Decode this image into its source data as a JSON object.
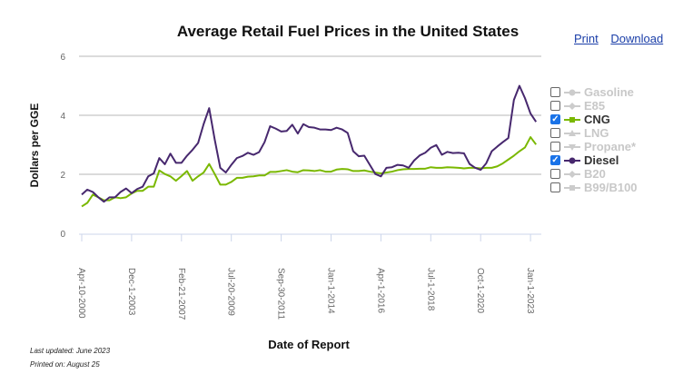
{
  "links": {
    "print": "Print",
    "download": "Download"
  },
  "footer": {
    "updated": "Last updated: June 2023",
    "printed": "Printed on: August 25"
  },
  "legend": [
    {
      "label": "Gasoline",
      "checked": false,
      "color": "#cccccc",
      "marker": "circle"
    },
    {
      "label": "E85",
      "checked": false,
      "color": "#cccccc",
      "marker": "diamond"
    },
    {
      "label": "CNG",
      "checked": true,
      "color": "#7ab800",
      "marker": "square"
    },
    {
      "label": "LNG",
      "checked": false,
      "color": "#cccccc",
      "marker": "triangle"
    },
    {
      "label": "Propane*",
      "checked": false,
      "color": "#cccccc",
      "marker": "triangle-down"
    },
    {
      "label": "Diesel",
      "checked": true,
      "color": "#47286e",
      "marker": "circle"
    },
    {
      "label": "B20",
      "checked": false,
      "color": "#cccccc",
      "marker": "diamond"
    },
    {
      "label": "B99/B100",
      "checked": false,
      "color": "#cccccc",
      "marker": "square"
    }
  ],
  "chart_data": {
    "type": "line",
    "title": "Average Retail Fuel Prices in the United States",
    "xlabel": "Date of Report",
    "ylabel": "Dollars per GGE",
    "ylim": [
      0,
      6
    ],
    "yticks": [
      0,
      2,
      4,
      6
    ],
    "grid": true,
    "legend_placement": "right",
    "x_ticks": [
      {
        "index": 0,
        "label": "Apr-10-2000"
      },
      {
        "index": 9,
        "label": "Dec-1-2003"
      },
      {
        "index": 18,
        "label": "Feb-21-2007"
      },
      {
        "index": 27,
        "label": "Jul-20-2009"
      },
      {
        "index": 36,
        "label": "Sep-30-2011"
      },
      {
        "index": 45,
        "label": "Jan-1-2014"
      },
      {
        "index": 54,
        "label": "Apr-1-2016"
      },
      {
        "index": 63,
        "label": "Jul-1-2018"
      },
      {
        "index": 72,
        "label": "Oct-1-2020"
      },
      {
        "index": 81,
        "label": "Jan-1-2023"
      }
    ],
    "series": [
      {
        "name": "Diesel",
        "color": "#47286e",
        "values": [
          1.31,
          1.48,
          1.4,
          1.22,
          1.07,
          1.22,
          1.22,
          1.4,
          1.52,
          1.36,
          1.5,
          1.58,
          1.93,
          2.03,
          2.55,
          2.34,
          2.7,
          2.39,
          2.39,
          2.63,
          2.83,
          3.06,
          3.7,
          4.24,
          3.18,
          2.22,
          2.06,
          2.32,
          2.55,
          2.62,
          2.73,
          2.66,
          2.75,
          3.09,
          3.63,
          3.55,
          3.45,
          3.47,
          3.68,
          3.38,
          3.7,
          3.6,
          3.58,
          3.52,
          3.52,
          3.5,
          3.58,
          3.52,
          3.4,
          2.78,
          2.61,
          2.63,
          2.32,
          2.01,
          1.93,
          2.22,
          2.24,
          2.32,
          2.3,
          2.22,
          2.47,
          2.64,
          2.73,
          2.9,
          2.99,
          2.66,
          2.76,
          2.72,
          2.73,
          2.71,
          2.35,
          2.22,
          2.15,
          2.37,
          2.78,
          2.94,
          3.09,
          3.23,
          4.52,
          5.0,
          4.58,
          4.06,
          3.78
        ]
      },
      {
        "name": "CNG",
        "color": "#7ab800",
        "values": [
          0.91,
          1.03,
          1.31,
          1.22,
          1.12,
          1.12,
          1.22,
          1.19,
          1.22,
          1.35,
          1.44,
          1.44,
          1.58,
          1.58,
          2.13,
          2.01,
          1.93,
          1.78,
          1.94,
          2.11,
          1.78,
          1.93,
          2.06,
          2.35,
          2.01,
          1.65,
          1.65,
          1.74,
          1.88,
          1.88,
          1.92,
          1.93,
          1.96,
          1.96,
          2.08,
          2.08,
          2.11,
          2.14,
          2.09,
          2.07,
          2.14,
          2.13,
          2.11,
          2.14,
          2.09,
          2.09,
          2.16,
          2.18,
          2.17,
          2.11,
          2.11,
          2.13,
          2.09,
          2.06,
          2.03,
          2.06,
          2.09,
          2.14,
          2.17,
          2.18,
          2.18,
          2.19,
          2.19,
          2.24,
          2.22,
          2.22,
          2.24,
          2.23,
          2.22,
          2.2,
          2.22,
          2.22,
          2.2,
          2.22,
          2.22,
          2.27,
          2.37,
          2.5,
          2.63,
          2.78,
          2.91,
          3.26,
          3.01
        ]
      }
    ]
  }
}
